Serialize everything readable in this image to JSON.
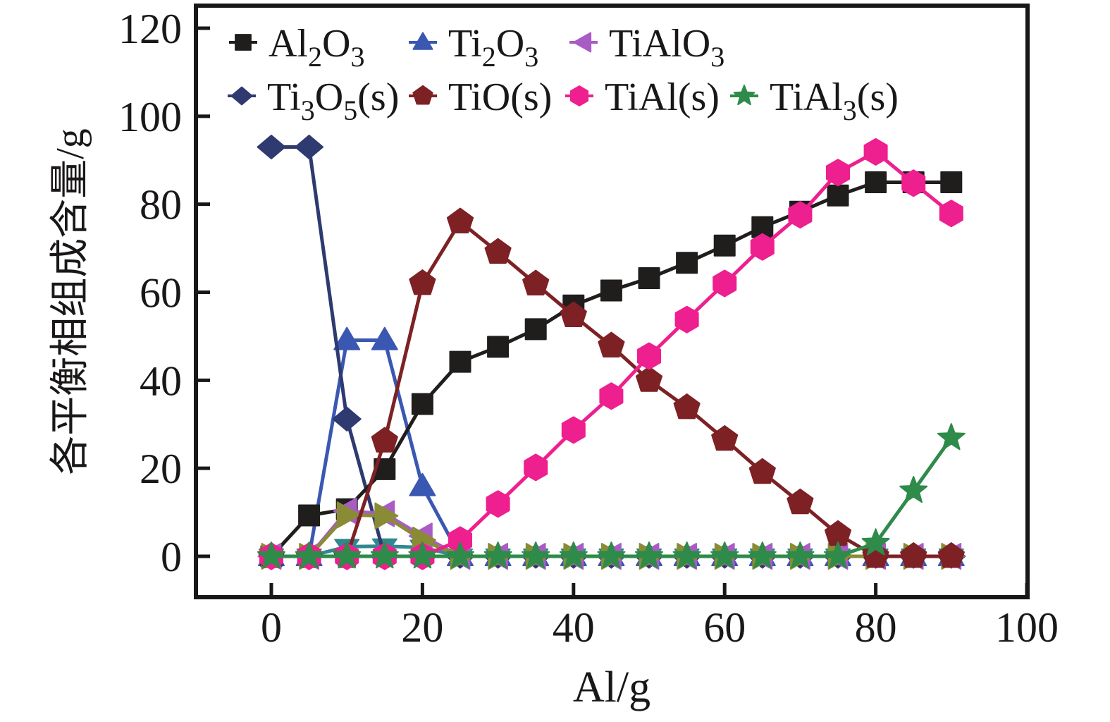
{
  "chart_data": {
    "type": "line",
    "title": "",
    "xlabel": "Al/g",
    "ylabel": "各平衡相组成含量/g",
    "xlim": [
      0,
      100
    ],
    "ylim": [
      0,
      120
    ],
    "xticks": [
      0,
      20,
      40,
      60,
      80,
      100
    ],
    "yticks": [
      0,
      20,
      40,
      60,
      80,
      100,
      120
    ],
    "grid": false,
    "legend_position": "top-left-inside",
    "x": [
      0,
      5,
      10,
      15,
      20,
      25,
      30,
      35,
      40,
      45,
      50,
      55,
      60,
      65,
      70,
      75,
      80,
      85,
      90
    ],
    "series": [
      {
        "id": "al2o3",
        "label": "Al_2O_3",
        "label_plain": "Al2O3",
        "marker": "square",
        "color": "#201d1d",
        "in_legend": true,
        "values": [
          0,
          9.3,
          10.7,
          19.8,
          34.6,
          44.2,
          47.6,
          51.6,
          57,
          60.4,
          63.2,
          66.7,
          70.6,
          74.8,
          78.3,
          82,
          85,
          85,
          85
        ]
      },
      {
        "id": "ti2o3",
        "label": "Ti_2O_3",
        "label_plain": "Ti2O3",
        "marker": "triangle-up",
        "color": "#3a57b2",
        "in_legend": true,
        "values": [
          0,
          0,
          49.1,
          49.1,
          15.9,
          0,
          0,
          0,
          0,
          0,
          0,
          0,
          0,
          0,
          0,
          0,
          0,
          0,
          0
        ]
      },
      {
        "id": "tialo3",
        "label": "TiAlO_3",
        "label_plain": "TiAlO3",
        "marker": "triangle-left",
        "color": "#a95cc4",
        "in_legend": true,
        "values": [
          0,
          0,
          10.3,
          9.7,
          4.6,
          0,
          0,
          0,
          0,
          0,
          0,
          0,
          0,
          0,
          0,
          0,
          0,
          0,
          0
        ]
      },
      {
        "id": "ti3o5",
        "label": "Ti_3O_5(s)",
        "label_plain": "Ti3O5(s)",
        "marker": "diamond",
        "color": "#2e3a70",
        "in_legend": true,
        "values": [
          93,
          93,
          31.2,
          0,
          0,
          0,
          0,
          0,
          0,
          0,
          0,
          0,
          0,
          0,
          0,
          0,
          0,
          0,
          0
        ]
      },
      {
        "id": "tio",
        "label": "TiO(s)",
        "label_plain": "TiO(s)",
        "marker": "pentagon",
        "color": "#7d2125",
        "in_legend": true,
        "values": [
          0,
          0,
          0,
          26.2,
          62,
          76,
          69.1,
          61.9,
          54.7,
          47.8,
          40,
          33.8,
          26.6,
          19.1,
          12.2,
          5,
          0,
          0,
          0
        ]
      },
      {
        "id": "tial",
        "label": "TiAl(s)",
        "label_plain": "TiAl(s)",
        "marker": "hexagon",
        "color": "#ee1f8e",
        "in_legend": true,
        "values": [
          0,
          0,
          0,
          0,
          0,
          3.7,
          11.9,
          20.2,
          28.7,
          36.4,
          45.5,
          53.8,
          62,
          70.3,
          77.6,
          87.2,
          91.9,
          84.8,
          77.9
        ]
      },
      {
        "id": "tial3",
        "label": "TiAl_3(s)",
        "label_plain": "TiAl3(s)",
        "marker": "star",
        "color": "#2e8b4a",
        "in_legend": true,
        "values": [
          0,
          0,
          0,
          0,
          0,
          0,
          0,
          0,
          0,
          0,
          0,
          0,
          0,
          0,
          0,
          0,
          3,
          14.9,
          26.9
        ]
      },
      {
        "id": "unlabeled_right_triangle",
        "label": "",
        "label_plain": "",
        "marker": "triangle-right",
        "color": "#8a8c35",
        "in_legend": false,
        "values": [
          0,
          0,
          9.4,
          9.2,
          3.7,
          0,
          0,
          0,
          0,
          0,
          0,
          0,
          0,
          0,
          0,
          0,
          0,
          0,
          0
        ]
      },
      {
        "id": "unlabeled_down_triangle",
        "label": "",
        "label_plain": "",
        "marker": "triangle-down",
        "color": "#31888e",
        "in_legend": false,
        "values": [
          0,
          0,
          2.2,
          2.3,
          2,
          0,
          0,
          0,
          0,
          0,
          0,
          0,
          0,
          0,
          0,
          0,
          0,
          0,
          0
        ]
      },
      {
        "id": "unlabeled_red_line",
        "label": "",
        "label_plain": "",
        "marker": "none",
        "color": "#e02525",
        "in_legend": false,
        "values": [
          0,
          0,
          0,
          0,
          0,
          0,
          0,
          0,
          0,
          0,
          0,
          0,
          0,
          0,
          0,
          0,
          0,
          0,
          0
        ]
      }
    ],
    "draw_order": [
      "unlabeled_down_triangle",
      "unlabeled_red_line",
      "ti2o3",
      "ti3o5",
      "al2o3",
      "tialo3",
      "unlabeled_right_triangle",
      "tio",
      "tial",
      "tial3"
    ],
    "legend_rows": [
      [
        "al2o3",
        "ti2o3",
        "tialo3"
      ],
      [
        "ti3o5",
        "tio",
        "tial",
        "tial3"
      ]
    ]
  },
  "colors": {
    "axis": "#1a1717",
    "background": "#ffffff"
  }
}
